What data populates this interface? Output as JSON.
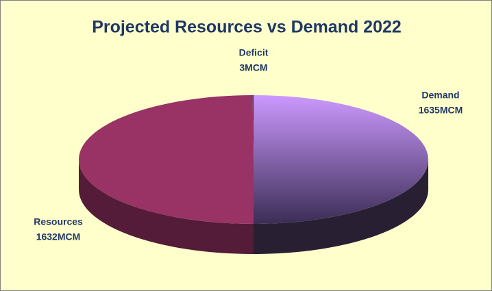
{
  "chart_data": {
    "type": "pie",
    "title": "Projected Resources vs Demand 2022",
    "categories": [
      "Demand",
      "Resources",
      "Deficit"
    ],
    "values": [
      1635,
      1632,
      3
    ],
    "value_labels": [
      "1635MCM",
      "1632MCM",
      "3MCM"
    ],
    "colors": [
      "#cc99ff",
      "#993366",
      "#1f3864"
    ]
  }
}
